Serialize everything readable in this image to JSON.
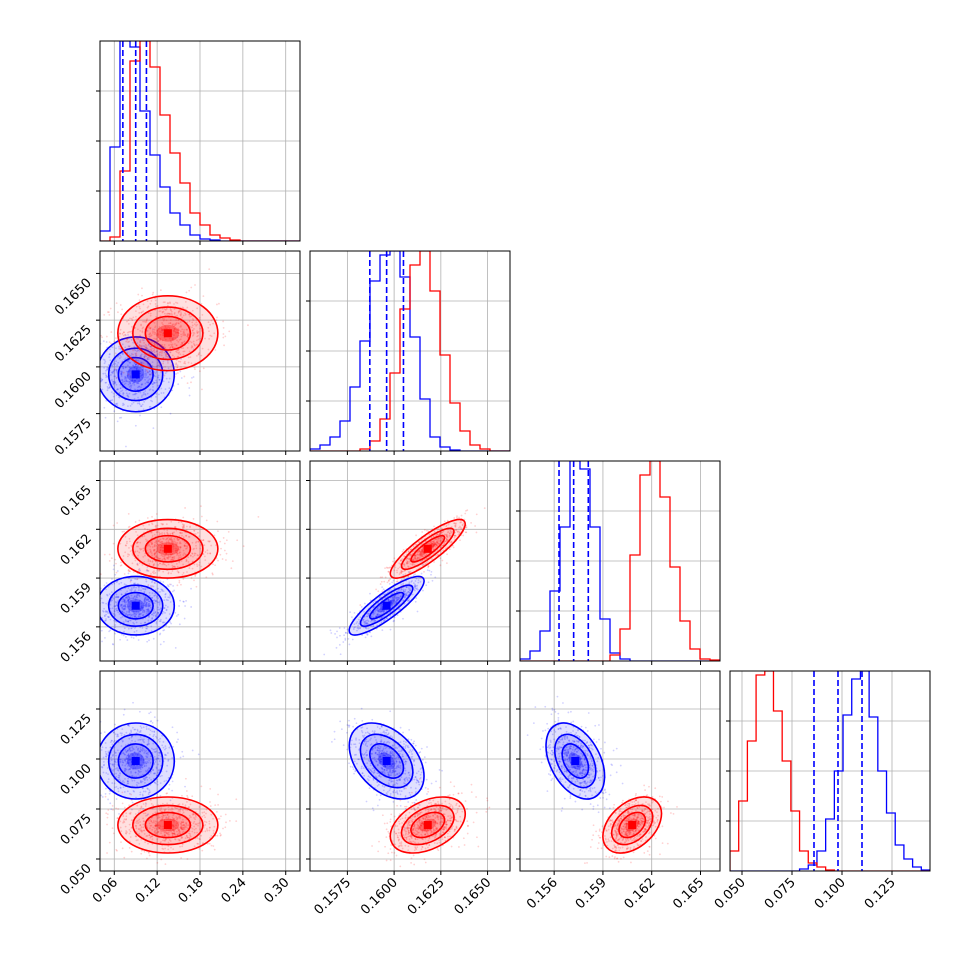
{
  "chart_data": {
    "type": "scatter",
    "layout": "corner-plot",
    "grid": true,
    "colors": {
      "blue": "#0000ff",
      "red": "#ff0000"
    },
    "params": [
      {
        "range": [
          0.04,
          0.32
        ],
        "ticks": [
          0.06,
          0.12,
          0.18,
          0.24,
          0.3
        ],
        "tick_labels": [
          "0.06",
          "0.12",
          "0.18",
          "0.24",
          "0.30"
        ]
      },
      {
        "range": [
          0.1555,
          0.1662
        ],
        "ticks": [
          0.1575,
          0.16,
          0.1625,
          0.165
        ],
        "tick_labels": [
          "0.1575",
          "0.1600",
          "0.1625",
          "0.1650"
        ]
      },
      {
        "range": [
          0.1539,
          0.1662
        ],
        "ticks": [
          0.156,
          0.159,
          0.162,
          0.165
        ],
        "tick_labels": [
          "0.156",
          "0.159",
          "0.162",
          "0.165"
        ]
      },
      {
        "range": [
          0.044,
          0.144
        ],
        "ticks": [
          0.05,
          0.075,
          0.1,
          0.125
        ],
        "tick_labels": [
          "0.050",
          "0.075",
          "0.100",
          "0.125"
        ]
      }
    ],
    "quantiles_blue": [
      [
        0.072,
        0.09,
        0.105
      ],
      [
        0.1587,
        0.1596,
        0.1605
      ],
      [
        0.1563,
        0.1572,
        0.1581
      ],
      [
        0.086,
        0.098,
        0.11
      ]
    ],
    "series": [
      {
        "color": "blue",
        "mean": [
          0.09,
          0.1596,
          0.1573,
          0.099
        ],
        "sd": [
          0.027,
          0.001,
          0.0009,
          0.0095
        ],
        "corr": [
          [
            1,
            0,
            0,
            0
          ],
          [
            0,
            1,
            0.85,
            -0.4
          ],
          [
            0,
            0.85,
            1,
            -0.4
          ],
          [
            0,
            -0.4,
            -0.4,
            1
          ]
        ],
        "hist": [
          [
            0.05,
            0.47,
            1.0,
            0.97,
            0.65,
            0.43,
            0.27,
            0.14,
            0.08,
            0.03,
            0.01,
            0.005,
            0,
            0,
            0,
            0,
            0,
            0,
            0,
            0
          ],
          [
            0.01,
            0.03,
            0.07,
            0.15,
            0.32,
            0.55,
            0.85,
            0.98,
            1.0,
            0.87,
            0.57,
            0.26,
            0.07,
            0.02,
            0.005,
            0,
            0,
            0,
            0,
            0
          ],
          [
            0.01,
            0.05,
            0.15,
            0.35,
            0.67,
            1.0,
            0.96,
            0.67,
            0.21,
            0.04,
            0.01,
            0,
            0,
            0,
            0,
            0,
            0,
            0,
            0,
            0
          ],
          [
            0,
            0,
            0,
            0,
            0,
            0,
            0,
            0,
            0.01,
            0.03,
            0.1,
            0.26,
            0.5,
            0.78,
            0.96,
            1.0,
            0.77,
            0.5,
            0.29,
            0.13,
            0.06,
            0.02,
            0.005
          ]
        ]
      },
      {
        "color": "red",
        "mean": [
          0.135,
          0.1618,
          0.1608,
          0.067
        ],
        "sd": [
          0.035,
          0.001,
          0.0009,
          0.007
        ],
        "corr": [
          [
            1,
            0,
            0,
            0
          ],
          [
            0,
            1,
            0.85,
            0.4
          ],
          [
            0,
            0.85,
            1,
            0.4
          ],
          [
            0,
            0.4,
            0.4,
            1
          ]
        ],
        "hist": [
          [
            0,
            0.02,
            0.35,
            0.9,
            1.0,
            0.87,
            0.63,
            0.44,
            0.29,
            0.14,
            0.08,
            0.03,
            0.015,
            0.005,
            0,
            0,
            0,
            0,
            0,
            0
          ],
          [
            0,
            0,
            0,
            0,
            0,
            0.01,
            0.05,
            0.16,
            0.39,
            0.71,
            0.93,
            1.0,
            0.8,
            0.48,
            0.24,
            0.1,
            0.03,
            0.01,
            0,
            0
          ],
          [
            0,
            0,
            0,
            0,
            0,
            0,
            0,
            0,
            0,
            0.03,
            0.16,
            0.53,
            0.93,
            1.0,
            0.82,
            0.47,
            0.2,
            0.06,
            0.01,
            0.005
          ],
          [
            0.1,
            0.35,
            0.65,
            0.98,
            1.0,
            0.8,
            0.55,
            0.3,
            0.1,
            0.04,
            0.02,
            0.005,
            0,
            0,
            0,
            0,
            0,
            0,
            0,
            0,
            0,
            0,
            0
          ]
        ]
      }
    ]
  }
}
